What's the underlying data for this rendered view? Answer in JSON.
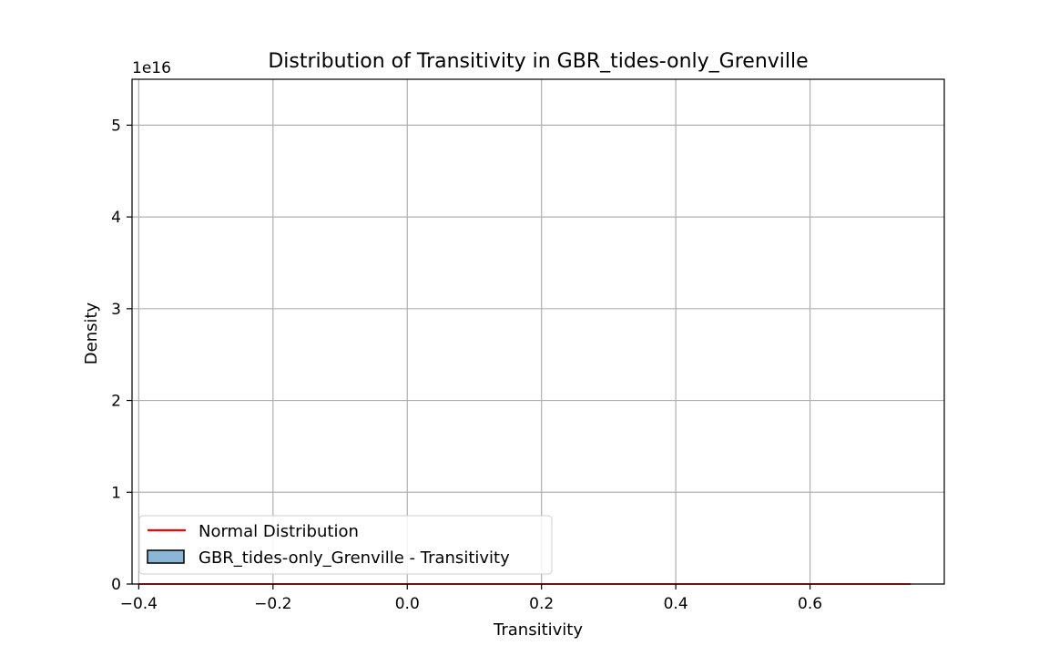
{
  "chart_data": {
    "type": "histogram",
    "title": "Distribution of Transitivity in GBR_tides-only_Grenville",
    "xlabel": "Transitivity",
    "ylabel": "Density",
    "y_offset_text": "1e16",
    "xlim": [
      -0.41,
      0.8
    ],
    "ylim": [
      0,
      5.5
    ],
    "x_ticks": [
      -0.4,
      -0.2,
      0.0,
      0.2,
      0.4,
      0.6
    ],
    "x_tick_labels": [
      "−0.4",
      "−0.2",
      "0.0",
      "0.2",
      "0.4",
      "0.6"
    ],
    "y_ticks": [
      0,
      1,
      2,
      3,
      4,
      5
    ],
    "y_tick_labels": [
      "0",
      "1",
      "2",
      "3",
      "4",
      "5"
    ],
    "grid": true,
    "legend_position": "lower-left",
    "series": [
      {
        "name": "Normal Distribution",
        "kind": "line",
        "color": "#ff0000",
        "x": [
          -0.4,
          -0.2,
          0.0,
          0.2,
          0.4,
          0.6,
          0.75
        ],
        "y": [
          0,
          0,
          0,
          0,
          0,
          0,
          0
        ]
      },
      {
        "name": "GBR_tides-only_Grenville - Transitivity",
        "kind": "histogram",
        "color": "#8ab6d8",
        "edgecolor": "#000000",
        "bins": [],
        "values": []
      }
    ]
  }
}
